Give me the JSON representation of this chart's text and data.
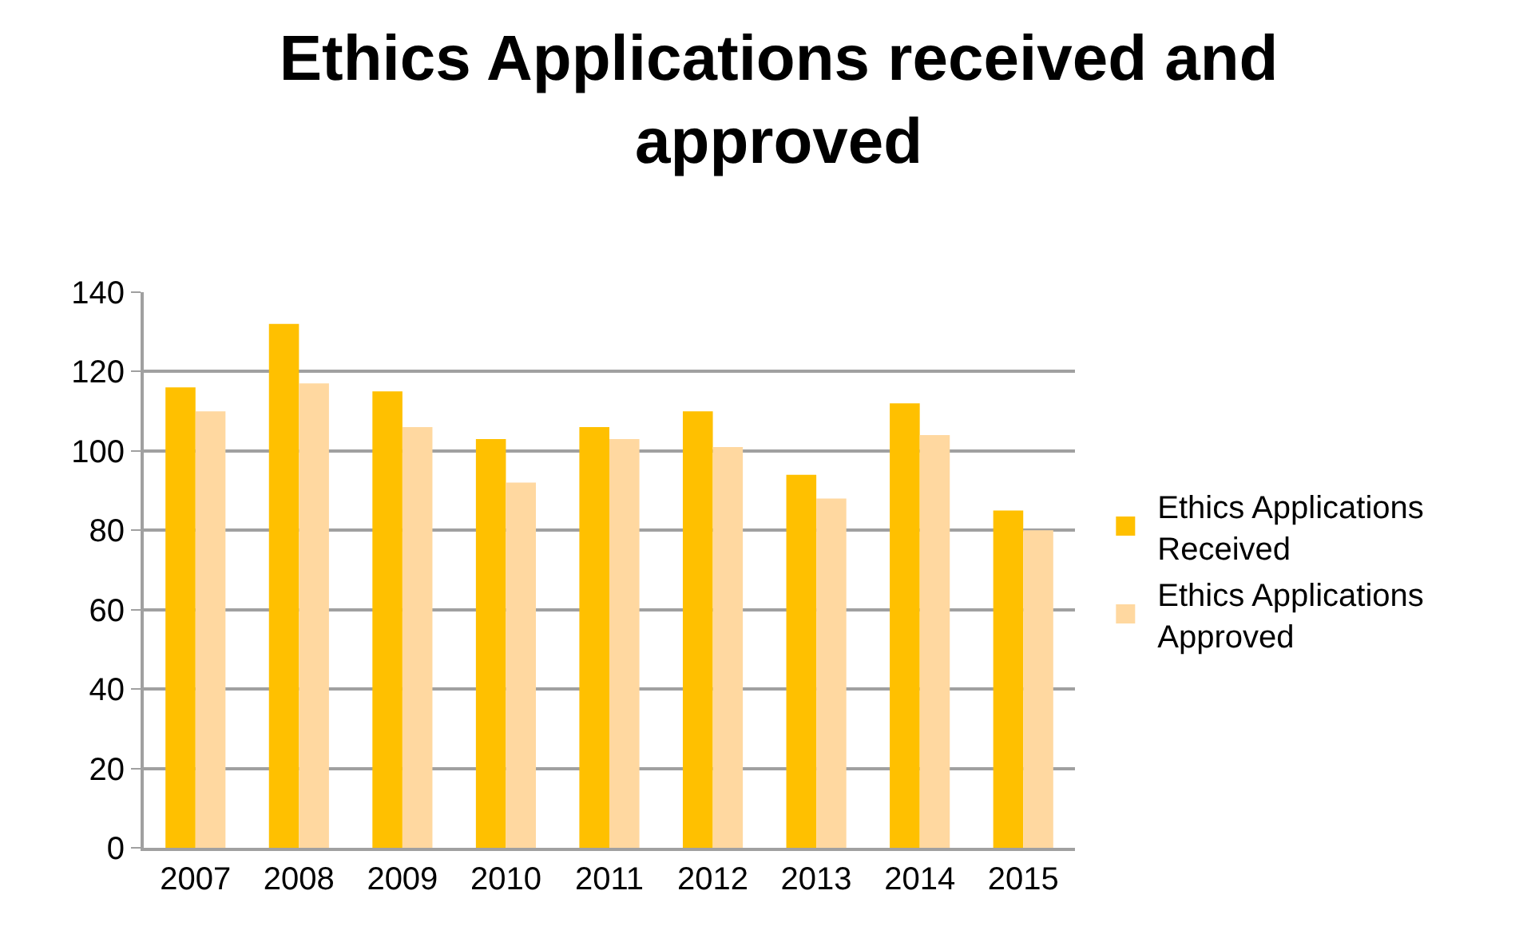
{
  "chart_data": {
    "type": "bar",
    "title": "Ethics Applications received and approved",
    "categories": [
      "2007",
      "2008",
      "2009",
      "2010",
      "2011",
      "2012",
      "2013",
      "2014",
      "2015"
    ],
    "series": [
      {
        "name": "Ethics Applications Received",
        "color": "#ffc000",
        "values": [
          116,
          132,
          115,
          103,
          106,
          110,
          94,
          112,
          85
        ]
      },
      {
        "name": "Ethics Applications Approved",
        "color": "#ffd8a0",
        "values": [
          110,
          117,
          106,
          92,
          103,
          101,
          88,
          104,
          80
        ]
      }
    ],
    "ylim": [
      0,
      140
    ],
    "yticks": [
      0,
      20,
      40,
      60,
      80,
      100,
      120,
      140
    ],
    "grid": "y",
    "legend": "right"
  }
}
